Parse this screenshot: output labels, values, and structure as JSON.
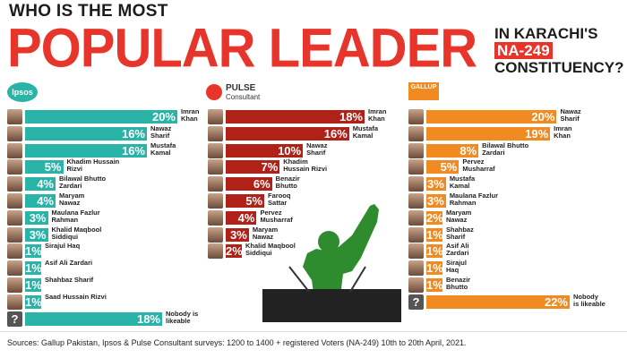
{
  "header": {
    "line1": "WHO IS THE MOST",
    "line2": "POPULAR LEADER",
    "right_line1": "IN KARACHI'S",
    "right_tag": "NA-249",
    "right_line3": "CONSTITUENCY?"
  },
  "logos": {
    "ipsos": "Ipsos",
    "pulse_top": "PULSE",
    "pulse_bottom": "Consultant",
    "gallup": "GALLUP"
  },
  "colors": {
    "ipsos": "#2ab3a7",
    "pulse": "#b02218",
    "gallup": "#f28a22",
    "unknown": "#555555",
    "title_red": "#e8352b"
  },
  "footer": "Sources: Gallup Pakistan, Ipsos & Pulse Consultant surveys: 1200 to 1400 + registered Voters (NA-249) 10th to 20th April, 2021.",
  "chart_data": [
    {
      "type": "bar",
      "source": "Ipsos",
      "categories": [
        "Imran Khan",
        "Nawaz Sharif",
        "Mustafa Kamal",
        "Khadim Hussain Rizvi",
        "Bilawal Bhutto Zardari",
        "Maryam Nawaz",
        "Maulana Fazlur Rahman",
        "Khalid Maqbool Siddiqui",
        "Sirajul Haq",
        "Asif Ali Zardari",
        "Shahbaz Sharif",
        "Saad Hussain Rizvi",
        "Nobody is likeable"
      ],
      "labels": [
        [
          "Imran",
          "Khan"
        ],
        [
          "Nawaz",
          "Sharif"
        ],
        [
          "Mustafa",
          "Kamal"
        ],
        [
          "Khadim Hussain",
          "Rizvi"
        ],
        [
          "Bilawal Bhutto",
          "Zardari"
        ],
        [
          "Maryam",
          "Nawaz"
        ],
        [
          "Maulana Fazlur",
          "Rahman"
        ],
        [
          "Khalid Maqbool",
          "Siddiqui"
        ],
        [
          "Sirajul Haq"
        ],
        [
          "Asif Ali Zardari"
        ],
        [
          "Shahbaz Sharif"
        ],
        [
          "Saad Hussain Rizvi"
        ],
        [
          "Nobody is",
          "likeable"
        ]
      ],
      "values": [
        20,
        16,
        16,
        5,
        4,
        4,
        3,
        3,
        1,
        1,
        1,
        1,
        18
      ],
      "value_labels": [
        "20%",
        "16%",
        "16%",
        "5%",
        "4%",
        "4%",
        "3%",
        "3%",
        "1%",
        "1%",
        "1%",
        "1%",
        "18%"
      ]
    },
    {
      "type": "bar",
      "source": "Pulse Consultant",
      "categories": [
        "Imran Khan",
        "Mustafa Kamal",
        "Nawaz Sharif",
        "Khadim Hussain Rizvi",
        "Benazir Bhutto",
        "Farooq Sattar",
        "Pervez Musharraf",
        "Maryam Nawaz",
        "Khalid Maqbool Siddiqui"
      ],
      "labels": [
        [
          "Imran",
          "Khan"
        ],
        [
          "Mustafa",
          "Kamal"
        ],
        [
          "Nawaz",
          "Sharif"
        ],
        [
          "Khadim",
          "Hussain Rizvi"
        ],
        [
          "Benazir",
          "Bhutto"
        ],
        [
          "Farooq",
          "Sattar"
        ],
        [
          "Pervez",
          "Musharraf"
        ],
        [
          "Maryam",
          "Nawaz"
        ],
        [
          "Khalid Maqbool",
          "Siddiqui"
        ]
      ],
      "values": [
        18,
        16,
        10,
        7,
        6,
        5,
        4,
        3,
        2
      ],
      "value_labels": [
        "18%",
        "16%",
        "10%",
        "7%",
        "6%",
        "5%",
        "4%",
        "3%",
        "2%"
      ]
    },
    {
      "type": "bar",
      "source": "Gallup Pakistan",
      "categories": [
        "Nawaz Sharif",
        "Imran Khan",
        "Bilawal Bhutto Zardari",
        "Pervez Musharraf",
        "Mustafa Kamal",
        "Maulana Fazlur Rahman",
        "Maryam Nawaz",
        "Shahbaz Sharif",
        "Asif Ali Zardari",
        "Sirajul Haq",
        "Benazir Bhutto",
        "Nobody is likeable"
      ],
      "labels": [
        [
          "Nawaz",
          "Sharif"
        ],
        [
          "Imran",
          "Khan"
        ],
        [
          "Bilawal Bhutto",
          "Zardari"
        ],
        [
          "Pervez",
          "Musharraf"
        ],
        [
          "Mustafa",
          "Kamal"
        ],
        [
          "Maulana Fazlur",
          "Rahman"
        ],
        [
          "Maryam",
          "Nawaz"
        ],
        [
          "Shahbaz",
          "Sharif"
        ],
        [
          "Asif Ali",
          "Zardari"
        ],
        [
          "Sirajul",
          "Haq"
        ],
        [
          "Benazir",
          "Bhutto"
        ],
        [
          "Nobody",
          "is likeable"
        ]
      ],
      "values": [
        20,
        19,
        8,
        5,
        3,
        3,
        2,
        1,
        1,
        1,
        1,
        22
      ],
      "value_labels": [
        "20%",
        "19%",
        "8%",
        "5%",
        "3%",
        "3%",
        "2%",
        "1%",
        "1%",
        "1%",
        "1%",
        "22%"
      ]
    }
  ]
}
